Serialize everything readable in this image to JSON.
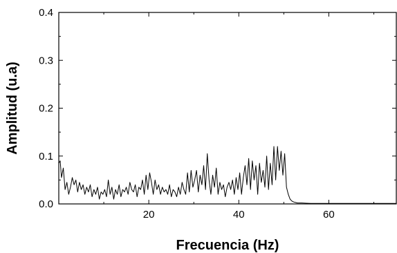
{
  "chart_data": {
    "type": "line",
    "title": "",
    "xlabel": "Frecuencia (Hz)",
    "ylabel": "Amplitud (u.a)",
    "xlim": [
      0,
      75
    ],
    "ylim": [
      0,
      0.4
    ],
    "x_ticks": [
      20,
      40,
      60
    ],
    "x_tick_labels": [
      "20",
      "40",
      "60"
    ],
    "y_ticks": [
      0,
      0.1,
      0.2,
      0.3,
      0.4
    ],
    "y_tick_labels": [
      "0.0",
      "0.1",
      "0.2",
      "0.3",
      "0.4"
    ],
    "grid": false,
    "series": [
      {
        "x": [
          0.0,
          0.3,
          0.6,
          1.0,
          1.4,
          1.8,
          2.2,
          2.6,
          3.0,
          3.4,
          3.8,
          4.2,
          4.6,
          5.0,
          5.4,
          5.8,
          6.2,
          6.6,
          7.0,
          7.4,
          7.8,
          8.2,
          8.6,
          9.0,
          9.4,
          9.8,
          10.2,
          10.6,
          11.0,
          11.4,
          11.8,
          12.2,
          12.6,
          13.0,
          13.4,
          13.8,
          14.2,
          14.6,
          15.0,
          15.4,
          15.8,
          16.2,
          16.6,
          17.0,
          17.4,
          17.8,
          18.2,
          18.6,
          19.0,
          19.4,
          19.8,
          20.2,
          20.6,
          21.0,
          21.4,
          21.8,
          22.2,
          22.6,
          23.0,
          23.4,
          23.8,
          24.2,
          24.6,
          25.0,
          25.4,
          25.8,
          26.2,
          26.6,
          27.0,
          27.4,
          27.8,
          28.2,
          28.6,
          29.0,
          29.4,
          29.8,
          30.2,
          30.6,
          31.0,
          31.4,
          31.8,
          32.2,
          32.6,
          33.0,
          33.4,
          33.8,
          34.2,
          34.6,
          35.0,
          35.4,
          35.8,
          36.2,
          36.6,
          37.0,
          37.4,
          37.8,
          38.2,
          38.6,
          39.0,
          39.4,
          39.8,
          40.2,
          40.6,
          41.0,
          41.4,
          41.8,
          42.2,
          42.6,
          43.0,
          43.4,
          43.8,
          44.2,
          44.6,
          45.0,
          45.4,
          45.8,
          46.2,
          46.6,
          47.0,
          47.4,
          47.8,
          48.2,
          48.6,
          49.0,
          49.4,
          49.8,
          50.2,
          50.6,
          51.0,
          51.4,
          51.8,
          52.2,
          52.6,
          53.0,
          54.0,
          55.0,
          56.0,
          58.0,
          60.0,
          63.0,
          66.0,
          70.0,
          75.0
        ],
        "y": [
          0.085,
          0.09,
          0.055,
          0.075,
          0.03,
          0.045,
          0.02,
          0.035,
          0.055,
          0.04,
          0.05,
          0.025,
          0.045,
          0.03,
          0.04,
          0.02,
          0.035,
          0.025,
          0.04,
          0.015,
          0.03,
          0.02,
          0.035,
          0.01,
          0.025,
          0.02,
          0.03,
          0.015,
          0.05,
          0.02,
          0.035,
          0.01,
          0.03,
          0.02,
          0.04,
          0.015,
          0.03,
          0.025,
          0.035,
          0.02,
          0.045,
          0.03,
          0.025,
          0.04,
          0.015,
          0.035,
          0.03,
          0.05,
          0.02,
          0.06,
          0.03,
          0.065,
          0.045,
          0.02,
          0.05,
          0.03,
          0.04,
          0.02,
          0.035,
          0.025,
          0.03,
          0.02,
          0.04,
          0.015,
          0.03,
          0.025,
          0.015,
          0.035,
          0.02,
          0.045,
          0.03,
          0.02,
          0.065,
          0.025,
          0.07,
          0.035,
          0.05,
          0.07,
          0.025,
          0.06,
          0.04,
          0.08,
          0.03,
          0.105,
          0.05,
          0.02,
          0.06,
          0.035,
          0.075,
          0.02,
          0.045,
          0.03,
          0.04,
          0.015,
          0.035,
          0.045,
          0.03,
          0.05,
          0.02,
          0.055,
          0.03,
          0.065,
          0.02,
          0.055,
          0.08,
          0.04,
          0.095,
          0.03,
          0.09,
          0.05,
          0.08,
          0.02,
          0.085,
          0.045,
          0.07,
          0.035,
          0.1,
          0.03,
          0.085,
          0.04,
          0.12,
          0.05,
          0.12,
          0.07,
          0.11,
          0.06,
          0.105,
          0.035,
          0.02,
          0.01,
          0.006,
          0.004,
          0.003,
          0.002,
          0.002,
          0.0015,
          0.001,
          0.001,
          0.001,
          0.001,
          0.001,
          0.001,
          0.001
        ]
      }
    ]
  }
}
